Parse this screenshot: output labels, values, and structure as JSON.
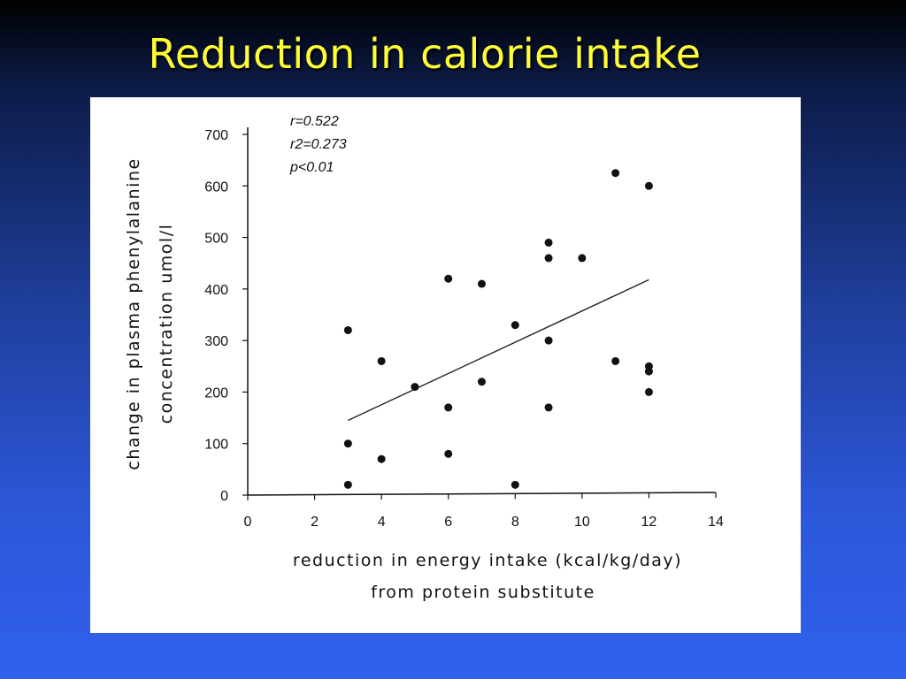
{
  "slide": {
    "title": "Reduction in calorie intake"
  },
  "chart_data": {
    "type": "scatter",
    "title": "",
    "xlabel": [
      "reduction in energy intake (kcal/kg/day)",
      "from protein substitute"
    ],
    "ylabel": [
      "change in plasma phenylalanine",
      "concentration umol/l"
    ],
    "xlim": [
      0,
      14
    ],
    "ylim": [
      0,
      700
    ],
    "xticks": [
      0,
      2,
      4,
      6,
      8,
      10,
      12,
      14
    ],
    "yticks": [
      0,
      100,
      200,
      300,
      400,
      500,
      600,
      700
    ],
    "grid": false,
    "annotations": [
      "r=0.522",
      "r2=0.273",
      "p<0.01"
    ],
    "points": [
      {
        "x": 3,
        "y": 320
      },
      {
        "x": 3,
        "y": 100
      },
      {
        "x": 3,
        "y": 20
      },
      {
        "x": 4,
        "y": 260
      },
      {
        "x": 4,
        "y": 70
      },
      {
        "x": 5,
        "y": 210
      },
      {
        "x": 6,
        "y": 420
      },
      {
        "x": 6,
        "y": 170
      },
      {
        "x": 6,
        "y": 80
      },
      {
        "x": 7,
        "y": 410
      },
      {
        "x": 7,
        "y": 220
      },
      {
        "x": 8,
        "y": 330
      },
      {
        "x": 8,
        "y": 20
      },
      {
        "x": 9,
        "y": 490
      },
      {
        "x": 9,
        "y": 460
      },
      {
        "x": 9,
        "y": 300
      },
      {
        "x": 9,
        "y": 170
      },
      {
        "x": 10,
        "y": 460
      },
      {
        "x": 11,
        "y": 625
      },
      {
        "x": 11,
        "y": 260
      },
      {
        "x": 12,
        "y": 600
      },
      {
        "x": 12,
        "y": 250
      },
      {
        "x": 12,
        "y": 240
      },
      {
        "x": 12,
        "y": 200
      }
    ],
    "regression_line": {
      "x": [
        3,
        12
      ],
      "y": [
        145,
        418
      ]
    }
  }
}
